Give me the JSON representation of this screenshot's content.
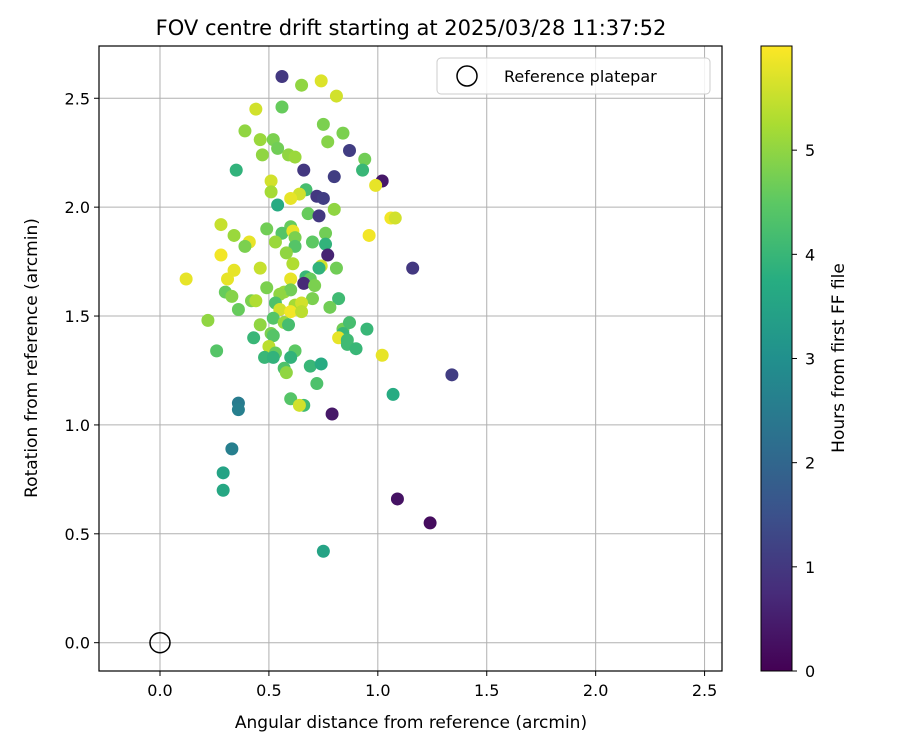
{
  "chart_data": {
    "type": "scatter",
    "title": "FOV centre drift starting at 2025/03/28 11:37:52",
    "xlabel": "Angular distance from reference (arcmin)",
    "ylabel": "Rotation from reference (arcmin)",
    "xlim": [
      -0.28,
      2.58
    ],
    "ylim": [
      -0.13,
      2.74
    ],
    "x_ticks": [
      "0.0",
      "0.5",
      "1.0",
      "1.5",
      "2.0",
      "2.5"
    ],
    "y_ticks": [
      "0.0",
      "0.5",
      "1.0",
      "1.5",
      "2.0",
      "2.5"
    ],
    "grid": true,
    "legend": {
      "position": "top-right",
      "entries": [
        "Reference platepar"
      ]
    },
    "colorbar": {
      "label": "Hours from first FF file",
      "colormap": "viridis",
      "range": [
        0,
        6
      ],
      "ticks": [
        "0",
        "1",
        "2",
        "3",
        "4",
        "5"
      ]
    },
    "reference_point": {
      "x": 0.0,
      "y": 0.0
    },
    "points": [
      {
        "x": 0.56,
        "y": 2.6,
        "c": 1.0
      },
      {
        "x": 0.74,
        "y": 2.58,
        "c": 5.7
      },
      {
        "x": 0.65,
        "y": 2.56,
        "c": 5.0
      },
      {
        "x": 0.81,
        "y": 2.51,
        "c": 5.6
      },
      {
        "x": 0.44,
        "y": 2.45,
        "c": 5.6
      },
      {
        "x": 0.56,
        "y": 2.46,
        "c": 4.6
      },
      {
        "x": 0.75,
        "y": 2.38,
        "c": 4.8
      },
      {
        "x": 0.39,
        "y": 2.35,
        "c": 5.0
      },
      {
        "x": 0.84,
        "y": 2.34,
        "c": 4.8
      },
      {
        "x": 0.46,
        "y": 2.31,
        "c": 5.1
      },
      {
        "x": 0.52,
        "y": 2.31,
        "c": 4.8
      },
      {
        "x": 0.77,
        "y": 2.3,
        "c": 4.9
      },
      {
        "x": 0.54,
        "y": 2.27,
        "c": 4.7
      },
      {
        "x": 0.87,
        "y": 2.26,
        "c": 1.1
      },
      {
        "x": 0.47,
        "y": 2.24,
        "c": 5.0
      },
      {
        "x": 0.59,
        "y": 2.24,
        "c": 5.0
      },
      {
        "x": 0.62,
        "y": 2.23,
        "c": 5.1
      },
      {
        "x": 0.94,
        "y": 2.22,
        "c": 4.7
      },
      {
        "x": 0.35,
        "y": 2.17,
        "c": 3.9
      },
      {
        "x": 0.66,
        "y": 2.17,
        "c": 1.0
      },
      {
        "x": 0.93,
        "y": 2.17,
        "c": 4.0
      },
      {
        "x": 0.8,
        "y": 2.14,
        "c": 1.1
      },
      {
        "x": 1.02,
        "y": 2.12,
        "c": 0.4
      },
      {
        "x": 0.51,
        "y": 2.12,
        "c": 5.6
      },
      {
        "x": 0.99,
        "y": 2.1,
        "c": 5.8
      },
      {
        "x": 0.67,
        "y": 2.08,
        "c": 4.2
      },
      {
        "x": 0.51,
        "y": 2.07,
        "c": 5.2
      },
      {
        "x": 0.64,
        "y": 2.06,
        "c": 5.6
      },
      {
        "x": 0.6,
        "y": 2.04,
        "c": 5.8
      },
      {
        "x": 0.72,
        "y": 2.05,
        "c": 1.0
      },
      {
        "x": 0.75,
        "y": 2.04,
        "c": 1.1
      },
      {
        "x": 0.54,
        "y": 2.01,
        "c": 3.7
      },
      {
        "x": 0.8,
        "y": 1.99,
        "c": 5.0
      },
      {
        "x": 0.68,
        "y": 1.97,
        "c": 4.6
      },
      {
        "x": 0.73,
        "y": 1.96,
        "c": 1.0
      },
      {
        "x": 1.06,
        "y": 1.95,
        "c": 5.9
      },
      {
        "x": 1.08,
        "y": 1.95,
        "c": 5.6
      },
      {
        "x": 0.28,
        "y": 1.92,
        "c": 5.5
      },
      {
        "x": 0.6,
        "y": 1.91,
        "c": 4.6
      },
      {
        "x": 0.49,
        "y": 1.9,
        "c": 4.7
      },
      {
        "x": 0.56,
        "y": 1.88,
        "c": 4.4
      },
      {
        "x": 0.61,
        "y": 1.89,
        "c": 5.8
      },
      {
        "x": 0.76,
        "y": 1.88,
        "c": 4.7
      },
      {
        "x": 0.34,
        "y": 1.87,
        "c": 5.1
      },
      {
        "x": 0.62,
        "y": 1.86,
        "c": 4.8
      },
      {
        "x": 0.96,
        "y": 1.87,
        "c": 5.9
      },
      {
        "x": 0.7,
        "y": 1.84,
        "c": 4.5
      },
      {
        "x": 0.76,
        "y": 1.83,
        "c": 3.9
      },
      {
        "x": 0.62,
        "y": 1.82,
        "c": 4.4
      },
      {
        "x": 0.41,
        "y": 1.84,
        "c": 5.8
      },
      {
        "x": 0.39,
        "y": 1.82,
        "c": 4.8
      },
      {
        "x": 0.53,
        "y": 1.84,
        "c": 5.1
      },
      {
        "x": 0.28,
        "y": 1.78,
        "c": 5.9
      },
      {
        "x": 0.58,
        "y": 1.79,
        "c": 5.0
      },
      {
        "x": 0.77,
        "y": 1.78,
        "c": 0.6
      },
      {
        "x": 0.61,
        "y": 1.74,
        "c": 5.3
      },
      {
        "x": 0.74,
        "y": 1.73,
        "c": 5.6
      },
      {
        "x": 0.46,
        "y": 1.72,
        "c": 5.5
      },
      {
        "x": 0.34,
        "y": 1.71,
        "c": 5.8
      },
      {
        "x": 0.81,
        "y": 1.72,
        "c": 4.7
      },
      {
        "x": 1.16,
        "y": 1.72,
        "c": 1.0
      },
      {
        "x": 0.73,
        "y": 1.72,
        "c": 3.9
      },
      {
        "x": 0.12,
        "y": 1.67,
        "c": 5.8
      },
      {
        "x": 0.31,
        "y": 1.67,
        "c": 5.8
      },
      {
        "x": 0.6,
        "y": 1.67,
        "c": 5.8
      },
      {
        "x": 0.67,
        "y": 1.68,
        "c": 4.0
      },
      {
        "x": 0.69,
        "y": 1.67,
        "c": 4.6
      },
      {
        "x": 0.66,
        "y": 1.65,
        "c": 0.7
      },
      {
        "x": 0.71,
        "y": 1.64,
        "c": 4.8
      },
      {
        "x": 0.49,
        "y": 1.63,
        "c": 4.8
      },
      {
        "x": 0.57,
        "y": 1.61,
        "c": 5.1
      },
      {
        "x": 0.6,
        "y": 1.62,
        "c": 4.7
      },
      {
        "x": 0.3,
        "y": 1.61,
        "c": 4.6
      },
      {
        "x": 0.33,
        "y": 1.59,
        "c": 4.9
      },
      {
        "x": 0.55,
        "y": 1.6,
        "c": 5.0
      },
      {
        "x": 0.42,
        "y": 1.57,
        "c": 4.8
      },
      {
        "x": 0.44,
        "y": 1.57,
        "c": 5.3
      },
      {
        "x": 0.7,
        "y": 1.58,
        "c": 4.8
      },
      {
        "x": 0.82,
        "y": 1.58,
        "c": 4.1
      },
      {
        "x": 0.53,
        "y": 1.56,
        "c": 4.3
      },
      {
        "x": 0.62,
        "y": 1.55,
        "c": 5.2
      },
      {
        "x": 0.65,
        "y": 1.56,
        "c": 5.6
      },
      {
        "x": 0.36,
        "y": 1.53,
        "c": 4.6
      },
      {
        "x": 0.55,
        "y": 1.53,
        "c": 5.6
      },
      {
        "x": 0.6,
        "y": 1.52,
        "c": 5.9
      },
      {
        "x": 0.65,
        "y": 1.52,
        "c": 5.4
      },
      {
        "x": 0.78,
        "y": 1.54,
        "c": 4.7
      },
      {
        "x": 0.22,
        "y": 1.48,
        "c": 5.0
      },
      {
        "x": 0.52,
        "y": 1.49,
        "c": 4.4
      },
      {
        "x": 0.57,
        "y": 1.47,
        "c": 5.1
      },
      {
        "x": 0.59,
        "y": 1.46,
        "c": 4.2
      },
      {
        "x": 0.46,
        "y": 1.46,
        "c": 5.0
      },
      {
        "x": 0.84,
        "y": 1.44,
        "c": 4.7
      },
      {
        "x": 0.87,
        "y": 1.47,
        "c": 4.2
      },
      {
        "x": 0.95,
        "y": 1.44,
        "c": 4.0
      },
      {
        "x": 0.51,
        "y": 1.42,
        "c": 4.8
      },
      {
        "x": 0.84,
        "y": 1.42,
        "c": 4.0
      },
      {
        "x": 0.43,
        "y": 1.4,
        "c": 4.0
      },
      {
        "x": 0.52,
        "y": 1.41,
        "c": 4.4
      },
      {
        "x": 0.82,
        "y": 1.4,
        "c": 5.8
      },
      {
        "x": 0.86,
        "y": 1.39,
        "c": 4.1
      },
      {
        "x": 0.86,
        "y": 1.37,
        "c": 4.1
      },
      {
        "x": 0.5,
        "y": 1.36,
        "c": 5.4
      },
      {
        "x": 0.53,
        "y": 1.33,
        "c": 4.6
      },
      {
        "x": 0.26,
        "y": 1.34,
        "c": 4.4
      },
      {
        "x": 0.62,
        "y": 1.34,
        "c": 4.5
      },
      {
        "x": 0.9,
        "y": 1.35,
        "c": 4.0
      },
      {
        "x": 0.48,
        "y": 1.31,
        "c": 4.0
      },
      {
        "x": 0.6,
        "y": 1.31,
        "c": 3.9
      },
      {
        "x": 1.02,
        "y": 1.32,
        "c": 5.8
      },
      {
        "x": 0.52,
        "y": 1.31,
        "c": 3.9
      },
      {
        "x": 0.69,
        "y": 1.27,
        "c": 4.0
      },
      {
        "x": 0.74,
        "y": 1.28,
        "c": 3.7
      },
      {
        "x": 0.57,
        "y": 1.26,
        "c": 4.3
      },
      {
        "x": 0.58,
        "y": 1.24,
        "c": 5.0
      },
      {
        "x": 1.34,
        "y": 1.23,
        "c": 1.1
      },
      {
        "x": 0.72,
        "y": 1.19,
        "c": 4.3
      },
      {
        "x": 1.07,
        "y": 1.14,
        "c": 3.7
      },
      {
        "x": 0.6,
        "y": 1.12,
        "c": 4.4
      },
      {
        "x": 0.36,
        "y": 1.1,
        "c": 2.5
      },
      {
        "x": 0.66,
        "y": 1.09,
        "c": 4.1
      },
      {
        "x": 0.64,
        "y": 1.09,
        "c": 5.6
      },
      {
        "x": 0.36,
        "y": 1.07,
        "c": 2.6
      },
      {
        "x": 0.79,
        "y": 1.05,
        "c": 0.4
      },
      {
        "x": 0.33,
        "y": 0.89,
        "c": 2.6
      },
      {
        "x": 0.29,
        "y": 0.78,
        "c": 3.5
      },
      {
        "x": 0.29,
        "y": 0.7,
        "c": 3.6
      },
      {
        "x": 1.09,
        "y": 0.66,
        "c": 0.3
      },
      {
        "x": 1.24,
        "y": 0.55,
        "c": 0.2
      },
      {
        "x": 0.75,
        "y": 0.42,
        "c": 3.5
      }
    ]
  }
}
